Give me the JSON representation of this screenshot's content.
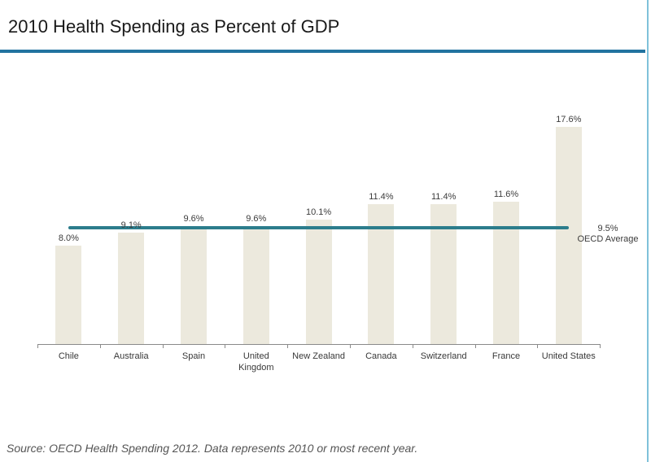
{
  "header": {
    "title": "2010 Health Spending as Percent of GDP"
  },
  "chart_data": {
    "type": "bar",
    "title": "2010 Health Spending as Percent of GDP",
    "categories": [
      "Chile",
      "Australia",
      "Spain",
      "United Kingdom",
      "New Zealand",
      "Canada",
      "Switzerland",
      "France",
      "United States"
    ],
    "values": [
      8.0,
      9.1,
      9.6,
      9.6,
      10.1,
      11.4,
      11.4,
      11.6,
      17.6
    ],
    "value_labels": [
      "8.0%",
      "9.1%",
      "9.6%",
      "9.6%",
      "10.1%",
      "11.4%",
      "11.4%",
      "11.6%",
      "17.6%"
    ],
    "xlabel": "",
    "ylabel": "",
    "ylim": [
      0,
      18.5
    ],
    "grid": false,
    "legend": false,
    "y_axis_visible": false,
    "reference_line": {
      "value": 9.5,
      "label_value": "9.5%",
      "label_text": "OECD Average"
    }
  },
  "footer": {
    "source_note": "Source: OECD Health Spending 2012.  Data represents 2010 or most recent year."
  },
  "colors": {
    "title_rule": "#2273A0",
    "right_border": "#7FC2DA",
    "bar": "#ECE9DD",
    "reference_line": "#2C7D8C",
    "axis": "#8a8a8a"
  }
}
